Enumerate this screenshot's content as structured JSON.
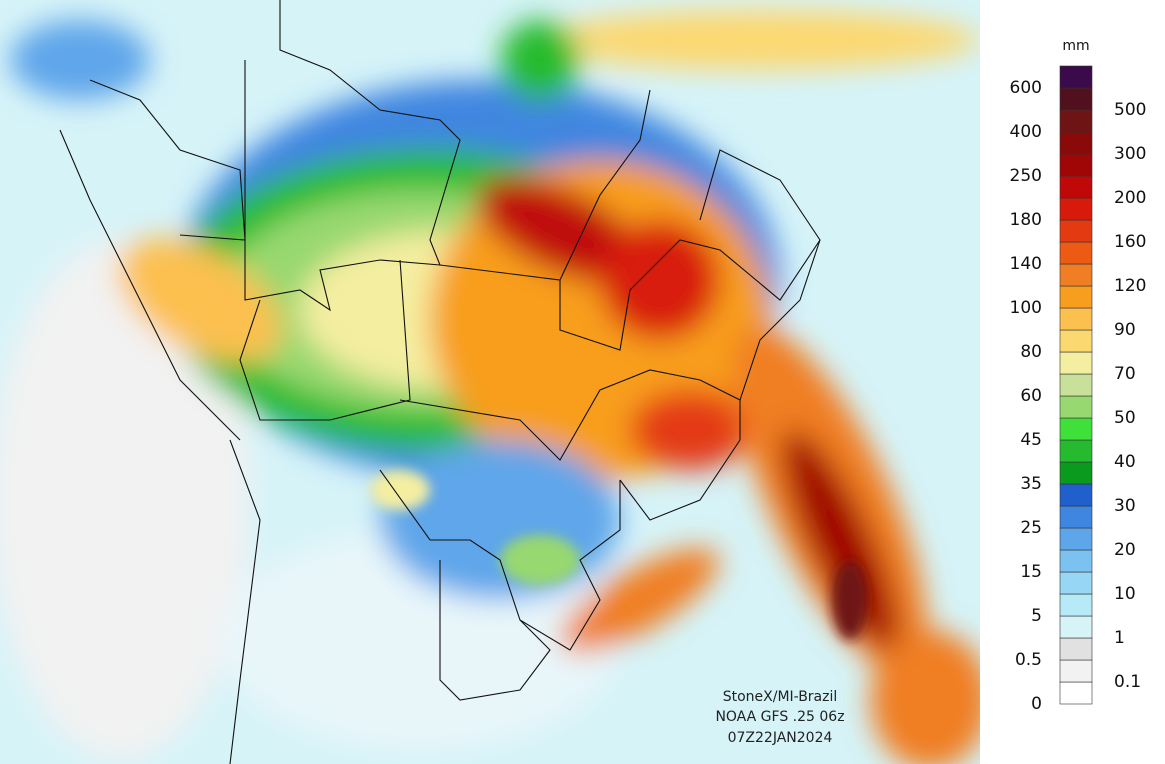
{
  "map": {
    "credits": [
      "StoneX/MI-Brazil",
      "NOAA GFS .25 06z",
      "07Z22JAN2024"
    ]
  },
  "colorbar": {
    "unit": "mm",
    "levels": [
      0,
      0.1,
      0.5,
      1,
      5,
      10,
      15,
      20,
      25,
      30,
      35,
      40,
      45,
      50,
      60,
      70,
      80,
      90,
      100,
      120,
      140,
      160,
      180,
      200,
      250,
      300,
      400,
      500,
      600
    ],
    "colors": [
      "#ffffff",
      "#f2f2f2",
      "#e1e1e1",
      "#d6f3f8",
      "#b6eaf6",
      "#97d6f4",
      "#7cc2f0",
      "#5ea6ea",
      "#3f86e0",
      "#2060cc",
      "#0a9a1e",
      "#26bb2e",
      "#3fe03a",
      "#98d870",
      "#c8e09a",
      "#f4eea0",
      "#fcd870",
      "#fcc050",
      "#f89e1e",
      "#f07e24",
      "#ec5a14",
      "#e43a12",
      "#d81a0a",
      "#c00808",
      "#a00606",
      "#8a0a0a",
      "#6e1414",
      "#50101e",
      "#3a0a4a"
    ]
  }
}
